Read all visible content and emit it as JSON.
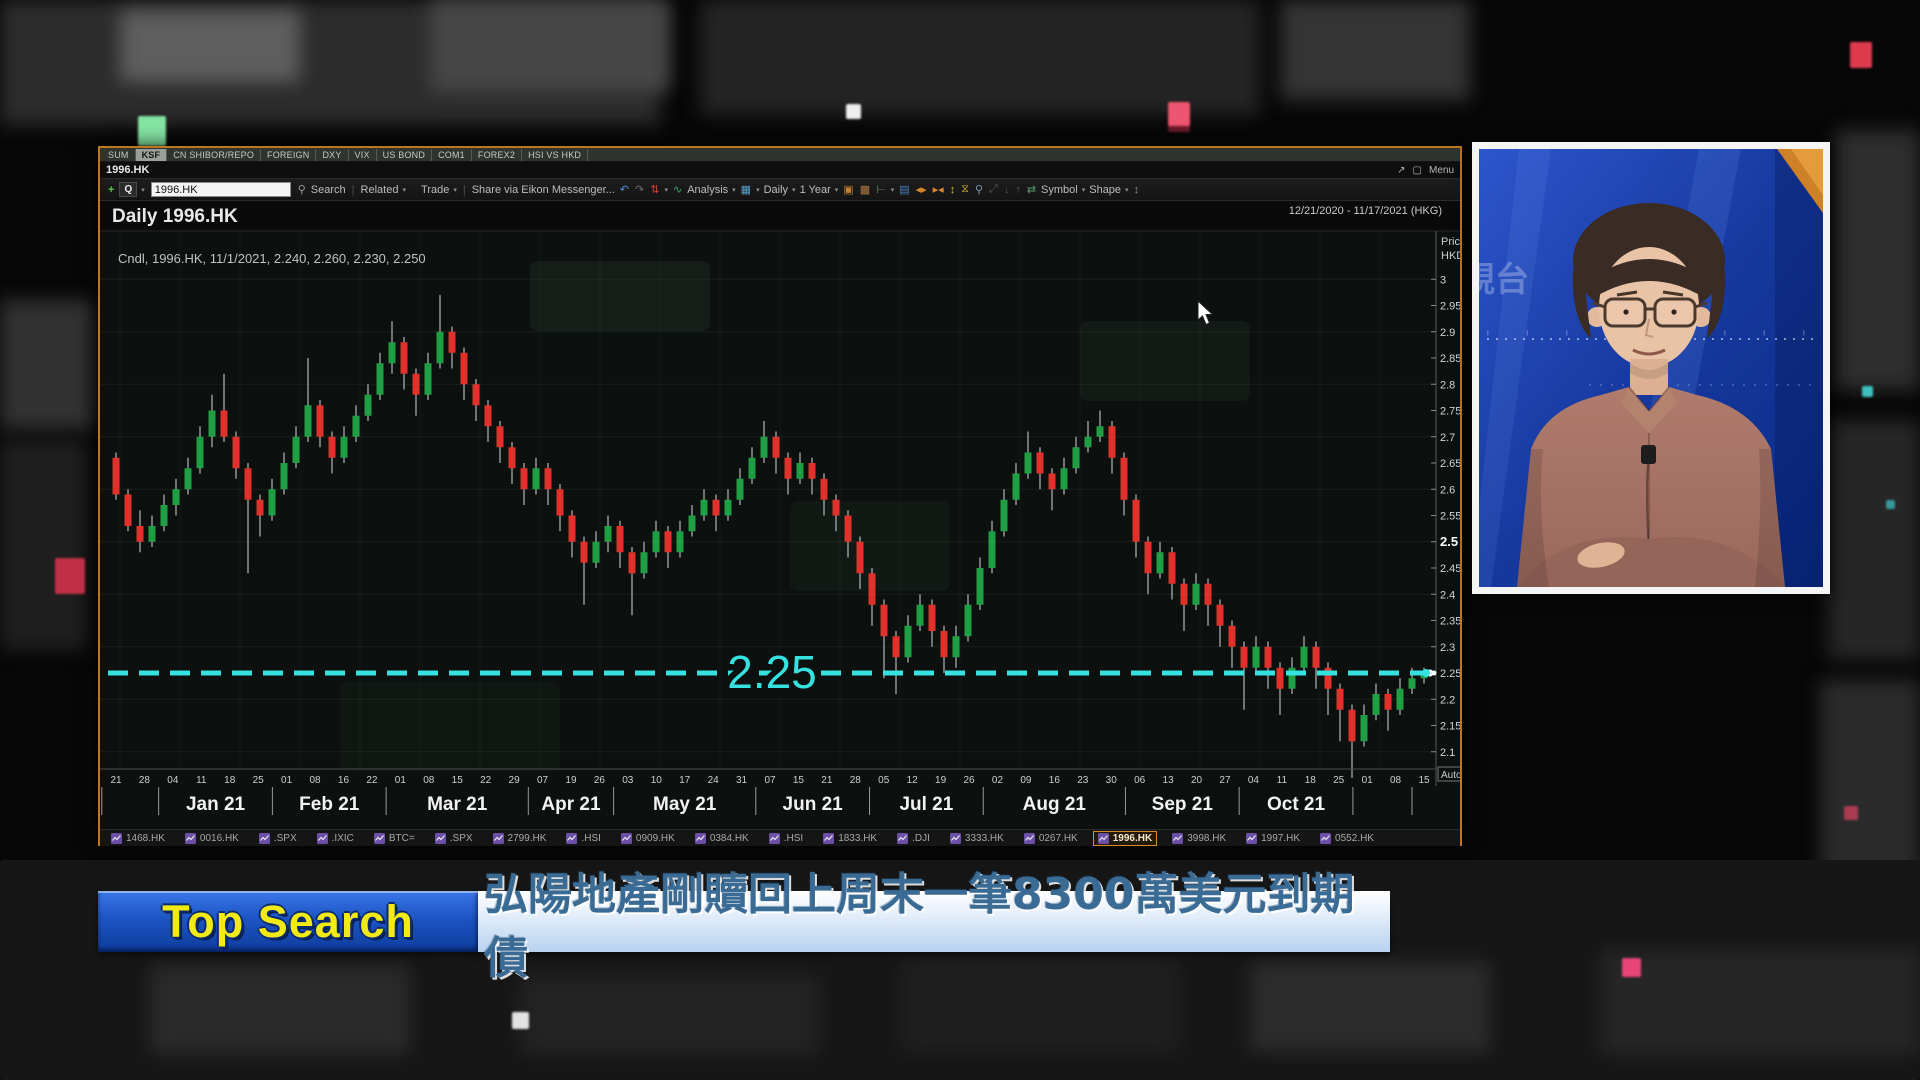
{
  "window": {
    "tabs": [
      "SUM",
      "KSF",
      "CN SHIBOR/REPO",
      "FOREIGN",
      "DXY",
      "VIX",
      "US BOND",
      "COM1",
      "FOREX2",
      "HSI VS HKD"
    ],
    "active_tab": "KSF",
    "title": "1996.HK",
    "menu_label": "Menu",
    "toolbar": {
      "q_label": "Q",
      "symbol_value": "1996.HK",
      "search_label": "Search",
      "related_label": "Related",
      "trade_label": "Trade",
      "share_label": "Share via Eikon Messenger...",
      "analysis_label": "Analysis",
      "daily_label": "Daily",
      "range_label": "1 Year",
      "symbol_label": "Symbol",
      "shape_label": "Shape"
    },
    "ticker": {
      "items": [
        "1468.HK",
        "0016.HK",
        ".SPX",
        ".IXIC",
        "BTC=",
        ".SPX",
        "2799.HK",
        ".HSI",
        "0909.HK",
        "0384.HK",
        ".HSI",
        "1833.HK",
        ".DJI",
        "3333.HK",
        "0267.HK",
        "1996.HK",
        "3998.HK",
        "1997.HK",
        "0552.HK"
      ],
      "active_item": "1996.HK"
    }
  },
  "chart_data": {
    "type": "candlestick",
    "symbol": "1996.HK",
    "title": "Daily 1996.HK",
    "legend": "Cndl, 1996.HK, 11/1/2021, 2.240, 2.260, 2.230, 2.250",
    "date_range": "12/21/2020 - 11/17/2021 (HKG)",
    "axis_title": "Price",
    "axis_unit": "HKD",
    "auto_label": "Auto",
    "ylim": [
      2.05,
      3.0
    ],
    "grid": true,
    "price_ticks": [
      {
        "label": "3",
        "p": 3.0
      },
      {
        "label": "2.95",
        "p": 2.95
      },
      {
        "label": "2.9",
        "p": 2.9
      },
      {
        "label": "2.85",
        "p": 2.85
      },
      {
        "label": "2.8",
        "p": 2.8
      },
      {
        "label": "2.75",
        "p": 2.75
      },
      {
        "label": "2.7",
        "p": 2.7
      },
      {
        "label": "2.65",
        "p": 2.65
      },
      {
        "label": "2.6",
        "p": 2.6
      },
      {
        "label": "2.55",
        "p": 2.55
      },
      {
        "label": "2.5",
        "p": 2.5,
        "bold": true
      },
      {
        "label": "2.45",
        "p": 2.45
      },
      {
        "label": "2.4",
        "p": 2.4
      },
      {
        "label": "2.35",
        "p": 2.35
      },
      {
        "label": "2.3",
        "p": 2.3
      },
      {
        "label": "2.25",
        "p": 2.25,
        "marker": true
      },
      {
        "label": "2.2",
        "p": 2.2
      },
      {
        "label": "2.15",
        "p": 2.15
      },
      {
        "label": "2.1",
        "p": 2.1
      }
    ],
    "support_line": {
      "value": 2.25,
      "label": "2.25",
      "color": "#35e2df"
    },
    "day_labels": [
      "21",
      "28",
      "04",
      "11",
      "18",
      "25",
      "01",
      "08",
      "16",
      "22",
      "01",
      "08",
      "15",
      "22",
      "29",
      "07",
      "19",
      "26",
      "03",
      "10",
      "17",
      "24",
      "31",
      "07",
      "15",
      "21",
      "28",
      "05",
      "12",
      "19",
      "26",
      "02",
      "09",
      "16",
      "23",
      "30",
      "06",
      "13",
      "20",
      "27",
      "04",
      "11",
      "18",
      "25",
      "01",
      "08",
      "15"
    ],
    "months": [
      {
        "label": "",
        "span": [
          0,
          1
        ]
      },
      {
        "label": "Jan 21",
        "span": [
          2,
          5
        ]
      },
      {
        "label": "Feb 21",
        "span": [
          6,
          9
        ]
      },
      {
        "label": "Mar 21",
        "span": [
          10,
          14
        ]
      },
      {
        "label": "Apr 21",
        "span": [
          15,
          17
        ]
      },
      {
        "label": "May 21",
        "span": [
          18,
          22
        ]
      },
      {
        "label": "Jun 21",
        "span": [
          23,
          26
        ]
      },
      {
        "label": "Jul 21",
        "span": [
          27,
          30
        ]
      },
      {
        "label": "Aug 21",
        "span": [
          31,
          35
        ]
      },
      {
        "label": "Sep 21",
        "span": [
          36,
          39
        ]
      },
      {
        "label": "Oct 21",
        "span": [
          40,
          43
        ]
      },
      {
        "label": "",
        "span": [
          44,
          46
        ]
      }
    ],
    "colors": {
      "up": "#1f9e44",
      "down": "#e0312a",
      "wick": "#d8d8d8",
      "frame": "#c1751f"
    },
    "candles": [
      [
        2.66,
        2.67,
        2.58,
        2.59
      ],
      [
        2.59,
        2.6,
        2.52,
        2.53
      ],
      [
        2.53,
        2.56,
        2.48,
        2.5
      ],
      [
        2.5,
        2.55,
        2.49,
        2.53
      ],
      [
        2.53,
        2.59,
        2.52,
        2.57
      ],
      [
        2.57,
        2.62,
        2.55,
        2.6
      ],
      [
        2.6,
        2.66,
        2.59,
        2.64
      ],
      [
        2.64,
        2.72,
        2.63,
        2.7
      ],
      [
        2.7,
        2.78,
        2.68,
        2.75
      ],
      [
        2.75,
        2.82,
        2.69,
        2.7
      ],
      [
        2.7,
        2.71,
        2.62,
        2.64
      ],
      [
        2.64,
        2.65,
        2.44,
        2.58
      ],
      [
        2.58,
        2.59,
        2.51,
        2.55
      ],
      [
        2.55,
        2.62,
        2.54,
        2.6
      ],
      [
        2.6,
        2.67,
        2.59,
        2.65
      ],
      [
        2.65,
        2.72,
        2.64,
        2.7
      ],
      [
        2.7,
        2.85,
        2.69,
        2.76
      ],
      [
        2.76,
        2.77,
        2.68,
        2.7
      ],
      [
        2.7,
        2.71,
        2.63,
        2.66
      ],
      [
        2.66,
        2.72,
        2.65,
        2.7
      ],
      [
        2.7,
        2.76,
        2.69,
        2.74
      ],
      [
        2.74,
        2.8,
        2.73,
        2.78
      ],
      [
        2.78,
        2.86,
        2.77,
        2.84
      ],
      [
        2.84,
        2.92,
        2.82,
        2.88
      ],
      [
        2.88,
        2.89,
        2.79,
        2.82
      ],
      [
        2.82,
        2.83,
        2.74,
        2.78
      ],
      [
        2.78,
        2.86,
        2.77,
        2.84
      ],
      [
        2.84,
        2.97,
        2.83,
        2.9
      ],
      [
        2.9,
        2.91,
        2.83,
        2.86
      ],
      [
        2.86,
        2.87,
        2.77,
        2.8
      ],
      [
        2.8,
        2.81,
        2.73,
        2.76
      ],
      [
        2.76,
        2.77,
        2.69,
        2.72
      ],
      [
        2.72,
        2.73,
        2.65,
        2.68
      ],
      [
        2.68,
        2.69,
        2.61,
        2.64
      ],
      [
        2.64,
        2.65,
        2.57,
        2.6
      ],
      [
        2.6,
        2.66,
        2.59,
        2.64
      ],
      [
        2.64,
        2.65,
        2.57,
        2.6
      ],
      [
        2.6,
        2.61,
        2.52,
        2.55
      ],
      [
        2.55,
        2.56,
        2.47,
        2.5
      ],
      [
        2.5,
        2.51,
        2.38,
        2.46
      ],
      [
        2.46,
        2.52,
        2.45,
        2.5
      ],
      [
        2.5,
        2.55,
        2.48,
        2.53
      ],
      [
        2.53,
        2.54,
        2.45,
        2.48
      ],
      [
        2.48,
        2.49,
        2.36,
        2.44
      ],
      [
        2.44,
        2.5,
        2.43,
        2.48
      ],
      [
        2.48,
        2.54,
        2.47,
        2.52
      ],
      [
        2.52,
        2.53,
        2.45,
        2.48
      ],
      [
        2.48,
        2.54,
        2.47,
        2.52
      ],
      [
        2.52,
        2.57,
        2.51,
        2.55
      ],
      [
        2.55,
        2.6,
        2.54,
        2.58
      ],
      [
        2.58,
        2.59,
        2.52,
        2.55
      ],
      [
        2.55,
        2.6,
        2.54,
        2.58
      ],
      [
        2.58,
        2.64,
        2.57,
        2.62
      ],
      [
        2.62,
        2.68,
        2.61,
        2.66
      ],
      [
        2.66,
        2.73,
        2.65,
        2.7
      ],
      [
        2.7,
        2.71,
        2.63,
        2.66
      ],
      [
        2.66,
        2.67,
        2.59,
        2.62
      ],
      [
        2.62,
        2.67,
        2.61,
        2.65
      ],
      [
        2.65,
        2.66,
        2.59,
        2.62
      ],
      [
        2.62,
        2.63,
        2.55,
        2.58
      ],
      [
        2.58,
        2.59,
        2.52,
        2.55
      ],
      [
        2.55,
        2.56,
        2.47,
        2.5
      ],
      [
        2.5,
        2.51,
        2.41,
        2.44
      ],
      [
        2.44,
        2.45,
        2.34,
        2.38
      ],
      [
        2.38,
        2.39,
        2.24,
        2.32
      ],
      [
        2.32,
        2.33,
        2.21,
        2.28
      ],
      [
        2.28,
        2.36,
        2.27,
        2.34
      ],
      [
        2.34,
        2.4,
        2.33,
        2.38
      ],
      [
        2.38,
        2.39,
        2.3,
        2.33
      ],
      [
        2.33,
        2.34,
        2.25,
        2.28
      ],
      [
        2.28,
        2.34,
        2.26,
        2.32
      ],
      [
        2.32,
        2.4,
        2.31,
        2.38
      ],
      [
        2.38,
        2.47,
        2.37,
        2.45
      ],
      [
        2.45,
        2.54,
        2.44,
        2.52
      ],
      [
        2.52,
        2.6,
        2.51,
        2.58
      ],
      [
        2.58,
        2.65,
        2.57,
        2.63
      ],
      [
        2.63,
        2.71,
        2.62,
        2.67
      ],
      [
        2.67,
        2.68,
        2.6,
        2.63
      ],
      [
        2.63,
        2.64,
        2.56,
        2.6
      ],
      [
        2.6,
        2.66,
        2.59,
        2.64
      ],
      [
        2.64,
        2.7,
        2.63,
        2.68
      ],
      [
        2.68,
        2.73,
        2.67,
        2.7
      ],
      [
        2.7,
        2.75,
        2.69,
        2.72
      ],
      [
        2.72,
        2.73,
        2.63,
        2.66
      ],
      [
        2.66,
        2.67,
        2.55,
        2.58
      ],
      [
        2.58,
        2.59,
        2.47,
        2.5
      ],
      [
        2.5,
        2.51,
        2.4,
        2.44
      ],
      [
        2.44,
        2.5,
        2.43,
        2.48
      ],
      [
        2.48,
        2.49,
        2.39,
        2.42
      ],
      [
        2.42,
        2.43,
        2.33,
        2.38
      ],
      [
        2.38,
        2.44,
        2.37,
        2.42
      ],
      [
        2.42,
        2.43,
        2.34,
        2.38
      ],
      [
        2.38,
        2.39,
        2.3,
        2.34
      ],
      [
        2.34,
        2.35,
        2.26,
        2.3
      ],
      [
        2.3,
        2.31,
        2.18,
        2.26
      ],
      [
        2.26,
        2.32,
        2.25,
        2.3
      ],
      [
        2.3,
        2.31,
        2.22,
        2.26
      ],
      [
        2.26,
        2.27,
        2.17,
        2.22
      ],
      [
        2.22,
        2.28,
        2.21,
        2.26
      ],
      [
        2.26,
        2.32,
        2.25,
        2.3
      ],
      [
        2.3,
        2.31,
        2.22,
        2.26
      ],
      [
        2.26,
        2.27,
        2.17,
        2.22
      ],
      [
        2.22,
        2.23,
        2.12,
        2.18
      ],
      [
        2.18,
        2.19,
        2.05,
        2.12
      ],
      [
        2.12,
        2.19,
        2.11,
        2.17
      ],
      [
        2.17,
        2.23,
        2.16,
        2.21
      ],
      [
        2.21,
        2.22,
        2.14,
        2.18
      ],
      [
        2.18,
        2.24,
        2.17,
        2.22
      ],
      [
        2.22,
        2.26,
        2.21,
        2.24
      ],
      [
        2.24,
        2.26,
        2.23,
        2.25
      ]
    ]
  },
  "banner": {
    "title": "Top Search",
    "headline": "弘陽地產剛贖回上周末一筆8300萬美元到期債",
    "title_color": "#f2ea15",
    "box_color": "#1d55c4"
  },
  "presenter": {
    "studio_text": "視台"
  }
}
